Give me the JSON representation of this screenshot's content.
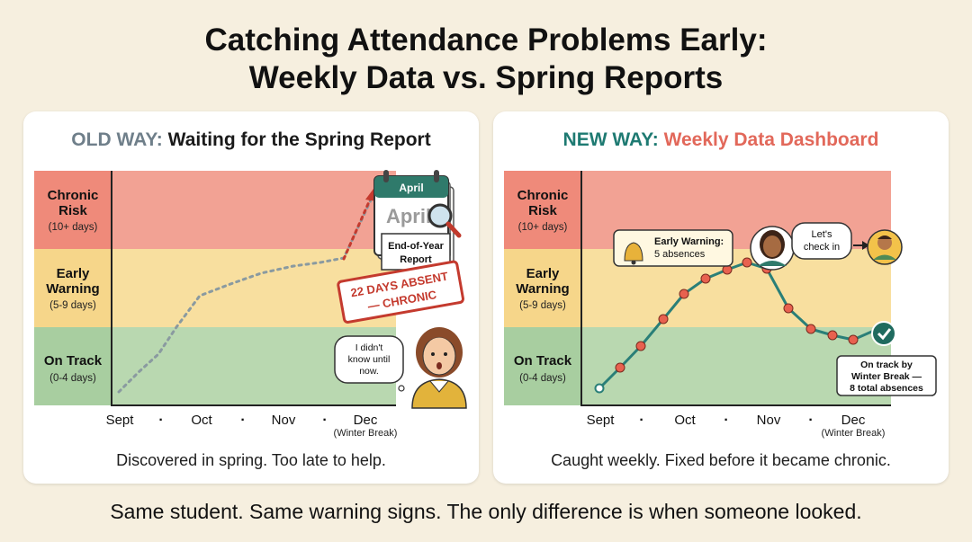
{
  "title_line1": "Catching Attendance Problems Early:",
  "title_line2": "Weekly Data vs. Spring Reports",
  "zones": [
    {
      "label": "Chronic",
      "label2": "Risk",
      "range": "(10+ days)",
      "color": "#ef8a7a"
    },
    {
      "label": "Early",
      "label2": "Warning",
      "range": "(5-9 days)",
      "color": "#f6d68a"
    },
    {
      "label": "On Track",
      "label2": "",
      "range": "(0-4 days)",
      "color": "#a8cea0"
    }
  ],
  "zone_band_colors": [
    "#f2a294",
    "#f8df9f",
    "#b9d8b0"
  ],
  "x_ticks": [
    "Sept",
    "·",
    "Oct",
    "·",
    "Nov",
    "·",
    "Dec"
  ],
  "x_tick_sub": "(Winter Break)",
  "old": {
    "head_prefix": "OLD WAY:",
    "head_rest": "Waiting for the Spring Report",
    "calendar_month": "April",
    "calendar_big": "April",
    "report_line1": "End-of-Year",
    "report_line2": "Report",
    "stamp_line1": "22 DAYS ABSENT",
    "stamp_line2": "— CHRONIC",
    "bubble_lines": [
      "I didn't",
      "know until",
      "now."
    ],
    "caption": "Discovered in spring. Too late to help.",
    "colors": {
      "head_prefix": "#6f7f8a",
      "line": "#8a9aa0",
      "arrow": "#c43a2e"
    }
  },
  "new": {
    "head_prefix": "NEW WAY:",
    "head_rest": "Weekly Data Dashboard",
    "alert_title": "Early Warning:",
    "alert_sub": "5 absences",
    "bubble_lines": [
      "Let's",
      "check in"
    ],
    "ontrack_lines": [
      "On track by",
      "Winter Break —",
      "8 total absences"
    ],
    "caption": "Caught weekly. Fixed before it became chronic.",
    "colors": {
      "head_prefix": "#1e7a72",
      "head_rest": "#e2685a",
      "line": "#2a7f78",
      "dot": "#e8614f"
    }
  },
  "chart_data": [
    {
      "type": "line",
      "name_hint": "old",
      "x": [
        "Sept",
        "Oct",
        "Nov",
        "Dec"
      ],
      "y_zones": [
        "On Track (0-4 days)",
        "Early Warning (5-9 days)",
        "Chronic Risk (10+ days)"
      ]
    },
    {
      "type": "line",
      "name_hint": "new",
      "x": [
        "Sept",
        "Oct",
        "Nov",
        "Dec"
      ],
      "y_zones": [
        "On Track (0-4 days)",
        "Early Warning (5-9 days)",
        "Chronic Risk (10+ days)"
      ]
    }
  ],
  "bottom_line": "Same student. Same warning signs. The only difference is when someone looked."
}
